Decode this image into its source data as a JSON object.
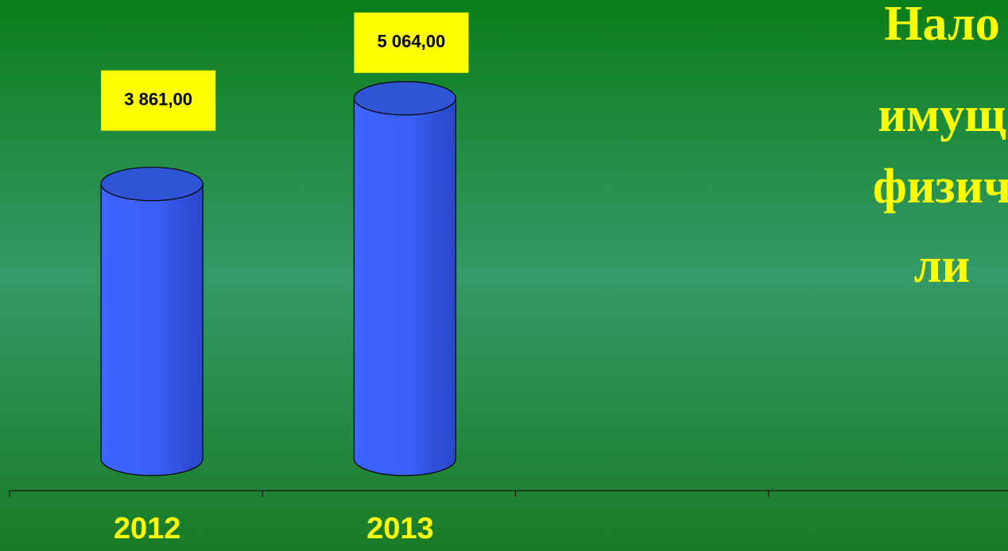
{
  "chart_data": {
    "type": "bar",
    "title_lines": [
      "Нало",
      "имущ",
      "физич",
      "ли"
    ],
    "categories": [
      "2012",
      "2013",
      null,
      null
    ],
    "values": [
      3861,
      5064,
      null,
      null
    ],
    "value_labels": [
      "3 861,00",
      "5 064,00",
      null,
      null
    ],
    "color": "#3a5cf0"
  }
}
